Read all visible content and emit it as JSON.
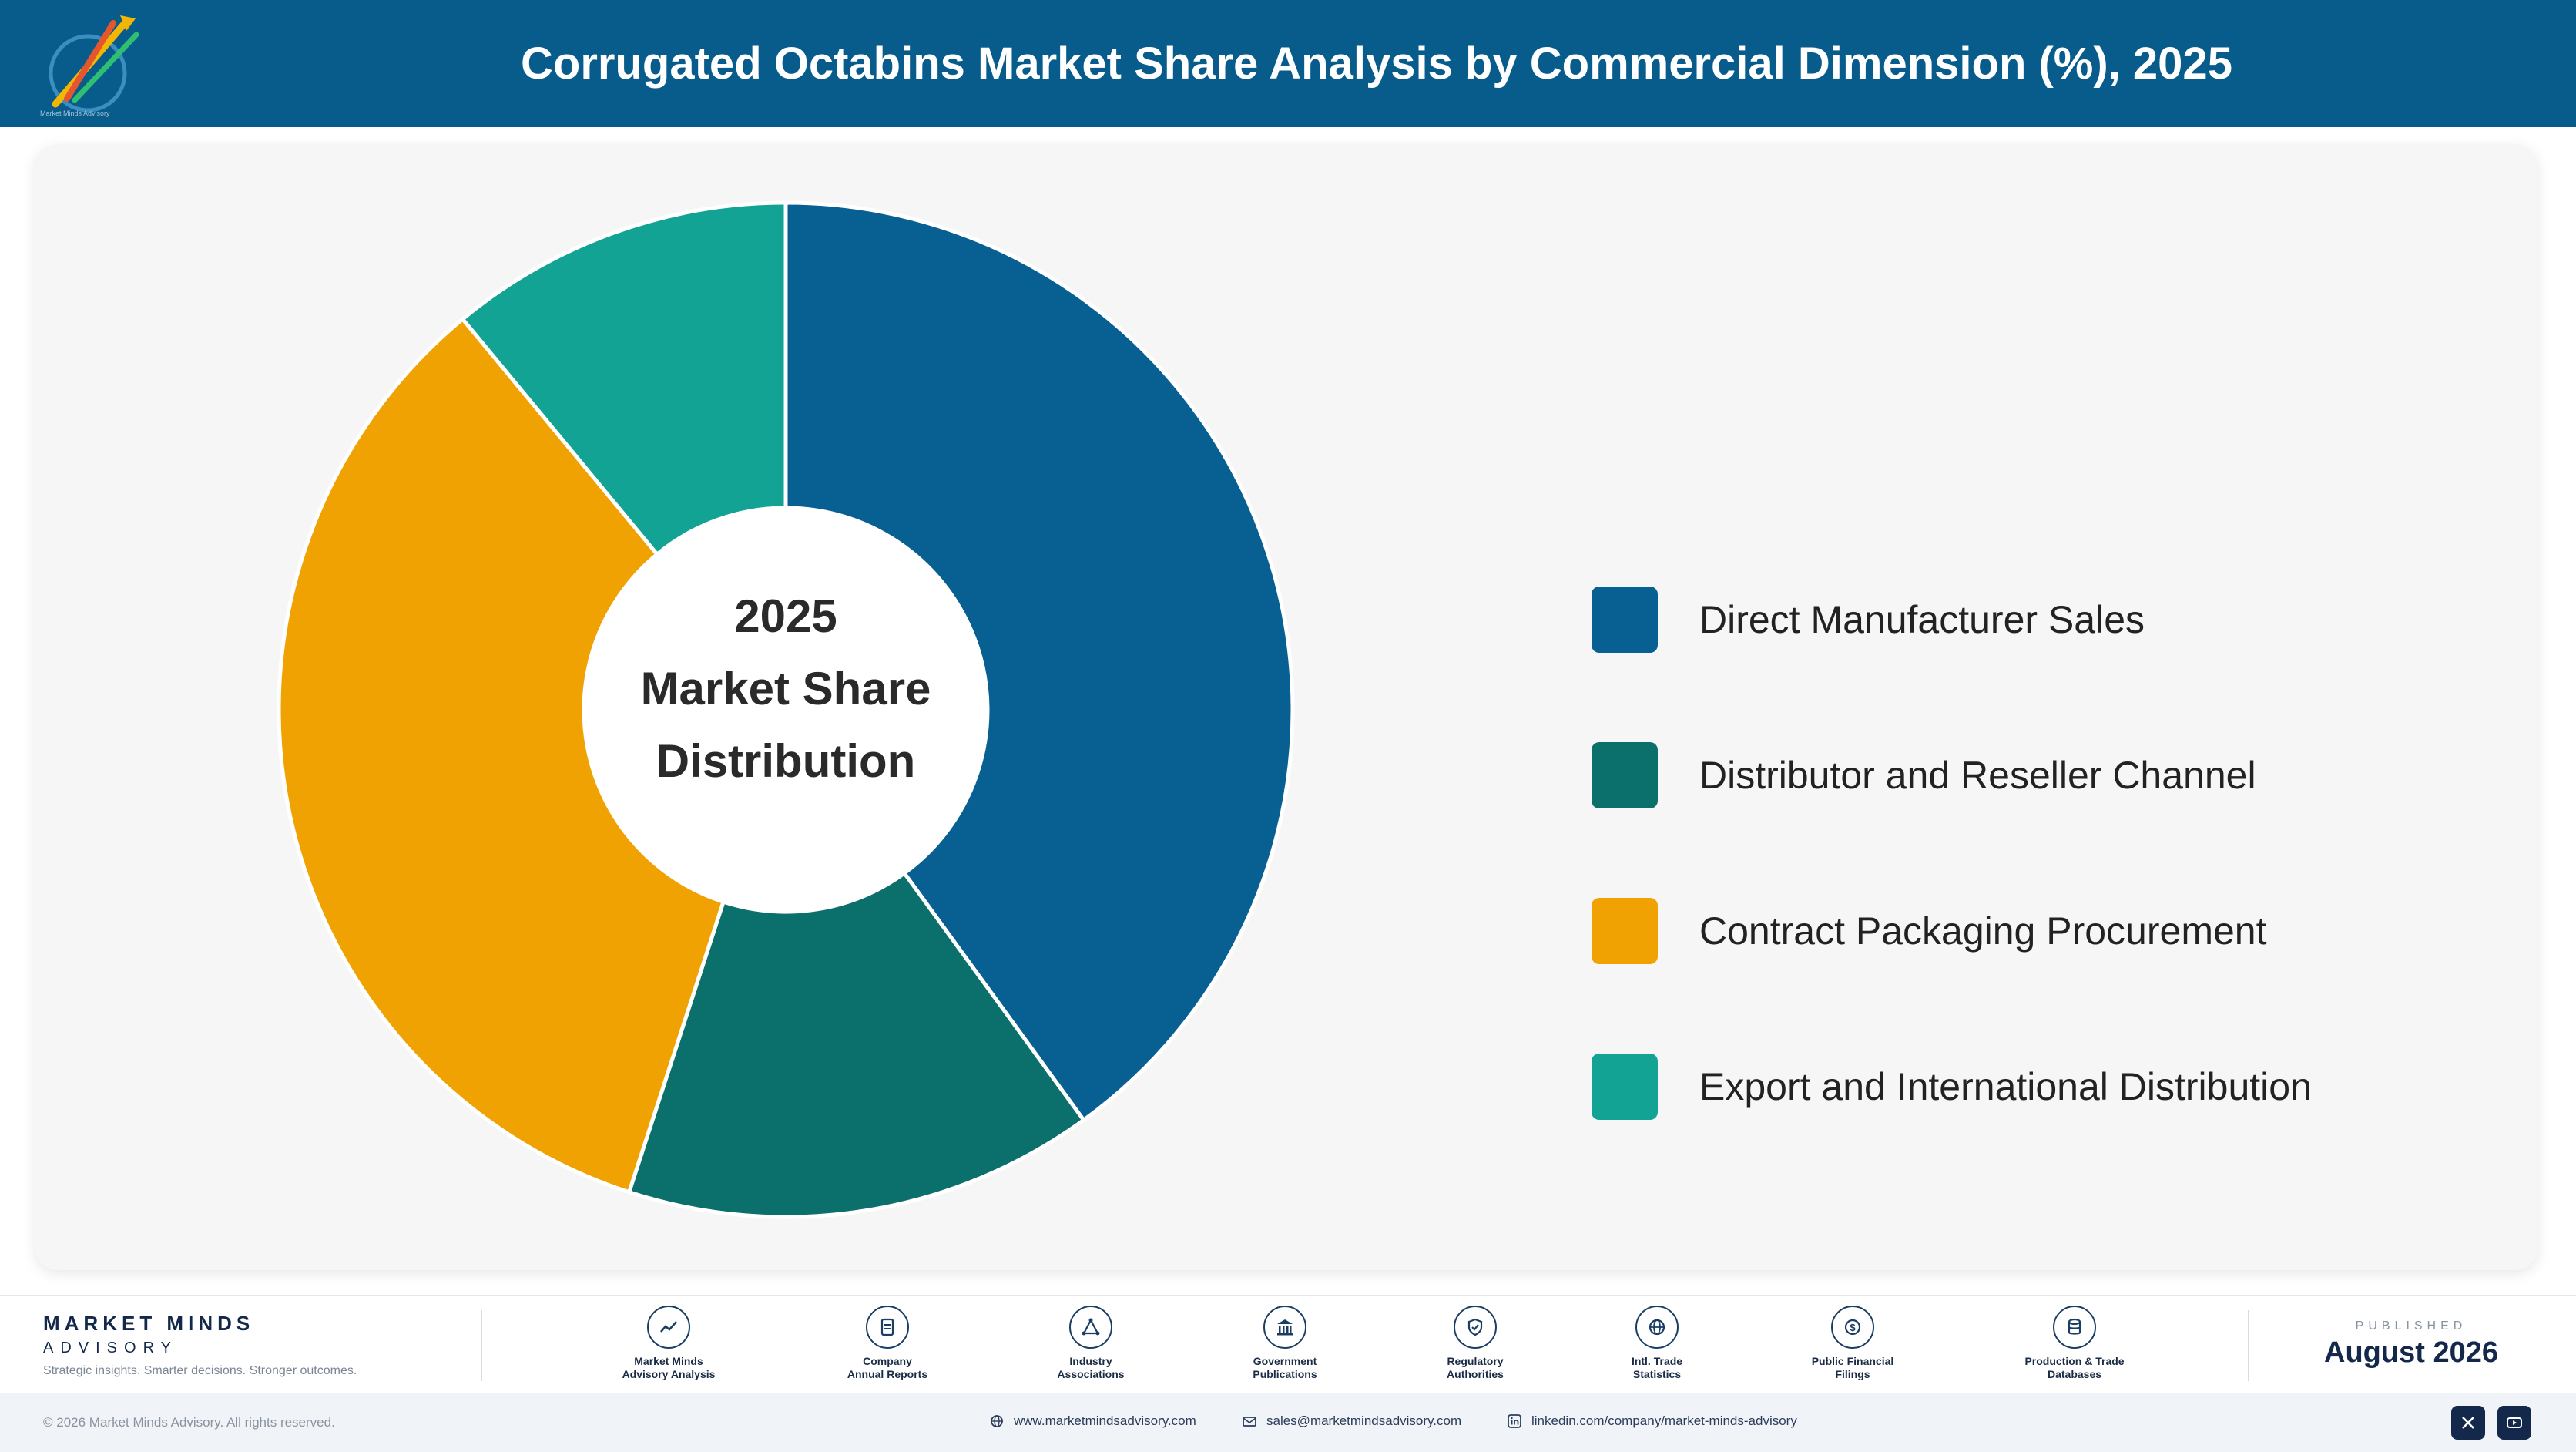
{
  "header": {
    "title": "Corrugated Octabins Market Share Analysis by Commercial Dimension (%), 2025",
    "logo_caption": "Market Minds Advisory",
    "background": "#075c8c"
  },
  "chart_data": {
    "type": "pie",
    "donut": true,
    "title": "",
    "center_text": [
      "2025",
      "Market Share",
      "Distribution"
    ],
    "categories": [
      "Direct Manufacturer Sales",
      "Distributor and Reseller Channel",
      "Contract Packaging Procurement",
      "Export and International Distribution"
    ],
    "values": [
      40,
      15,
      34,
      11
    ],
    "colors": [
      "#075f92",
      "#0b6f6b",
      "#f0a202",
      "#12a394"
    ],
    "legend_position": "right"
  },
  "footer": {
    "brand_name": "MARKET MINDS",
    "brand_sub": "ADVISORY",
    "tagline": "Strategic insights. Smarter decisions. Stronger outcomes.",
    "sources": [
      {
        "label": "Market Minds\nAdvisory Analysis",
        "icon": "chart-line-icon"
      },
      {
        "label": "Company\nAnnual Reports",
        "icon": "document-icon"
      },
      {
        "label": "Industry\nAssociations",
        "icon": "network-icon"
      },
      {
        "label": "Government\nPublications",
        "icon": "government-building-icon"
      },
      {
        "label": "Regulatory\nAuthorities",
        "icon": "shield-check-icon"
      },
      {
        "label": "Intl. Trade\nStatistics",
        "icon": "globe-icon"
      },
      {
        "label": "Public Financial\nFilings",
        "icon": "dollar-coin-icon"
      },
      {
        "label": "Production & Trade\nDatabases",
        "icon": "database-icon"
      }
    ],
    "published_label": "PUBLISHED",
    "published_date": "August 2026",
    "copyright": "© 2026 Market Minds Advisory. All rights reserved.",
    "website": "www.marketmindsadvisory.com",
    "email": "sales@marketmindsadvisory.com",
    "linkedin": "linkedin.com/company/market-minds-advisory"
  }
}
